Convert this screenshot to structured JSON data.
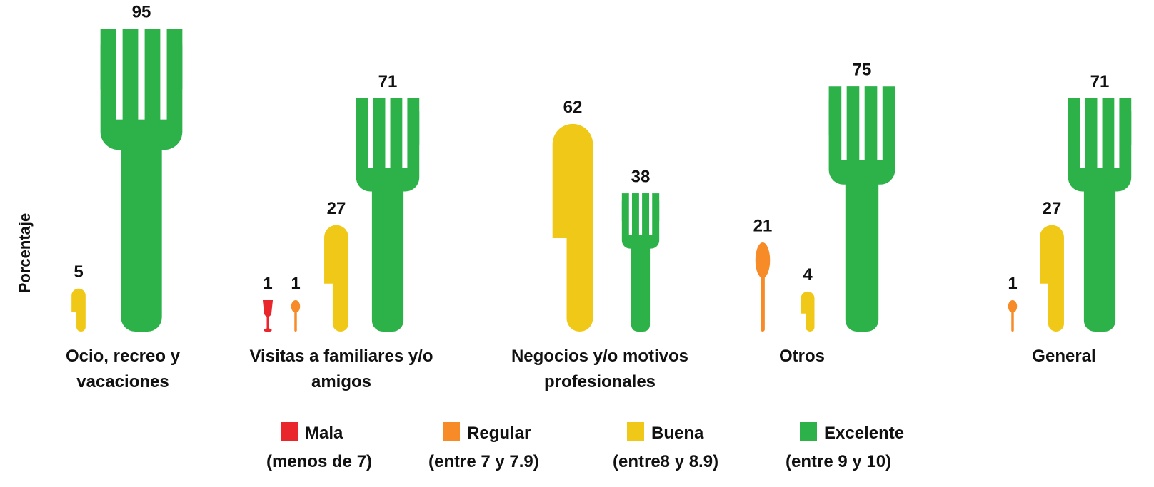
{
  "chart_data": {
    "type": "pictorial_bar",
    "y_label": "Porcentaje",
    "categories": [
      "Ocio, recreo y vacaciones",
      "Visitas a familiares y/o amigos",
      "Negocios y/o motivos profesionales",
      "Otros",
      "General"
    ],
    "series": [
      {
        "name": "Mala",
        "range_label": "(menos de 7)",
        "color": "#e8262b",
        "icon": "glass",
        "values": [
          null,
          1,
          null,
          null,
          null
        ]
      },
      {
        "name": "Regular",
        "range_label": "(entre 7 y 7.9)",
        "color": "#f68b28",
        "icon": "spoon",
        "values": [
          null,
          1,
          null,
          21,
          1
        ]
      },
      {
        "name": "Buena",
        "range_label": "(entre8 y 8.9)",
        "color": "#f0c818",
        "icon": "knife",
        "values": [
          5,
          27,
          62,
          4,
          27
        ]
      },
      {
        "name": "Excelente",
        "range_label": "(entre 9 y 10)",
        "color": "#2db24a",
        "icon": "fork",
        "values": [
          95,
          71,
          38,
          75,
          71
        ]
      }
    ]
  }
}
